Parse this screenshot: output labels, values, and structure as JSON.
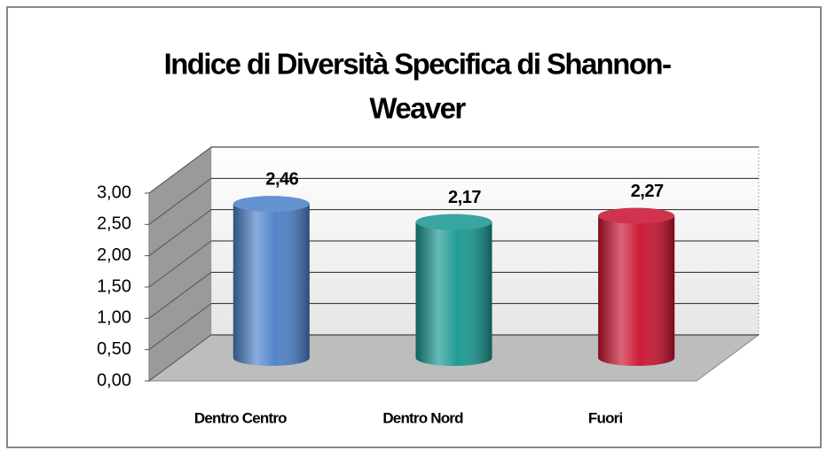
{
  "chart_data": {
    "type": "bar3d",
    "title": [
      "Indice di Diversità Specifica di Shannon-",
      "Weaver"
    ],
    "categories": [
      "Dentro Centro",
      "Dentro Nord",
      "Fuori"
    ],
    "values": [
      2.46,
      2.17,
      2.27
    ],
    "value_labels": [
      "2,46",
      "2,17",
      "2,27"
    ],
    "colors": [
      "#4a7fc8",
      "#169690",
      "#c8102e"
    ],
    "ylim": [
      0,
      3
    ],
    "yticks": [
      {
        "value": 0,
        "label": "0,00"
      },
      {
        "value": 0.5,
        "label": "0,50"
      },
      {
        "value": 1,
        "label": "1,00"
      },
      {
        "value": 1.5,
        "label": "1,50"
      },
      {
        "value": 2,
        "label": "2,00"
      },
      {
        "value": 2.5,
        "label": "2,50"
      },
      {
        "value": 3,
        "label": "3,00"
      }
    ],
    "grid": true
  }
}
